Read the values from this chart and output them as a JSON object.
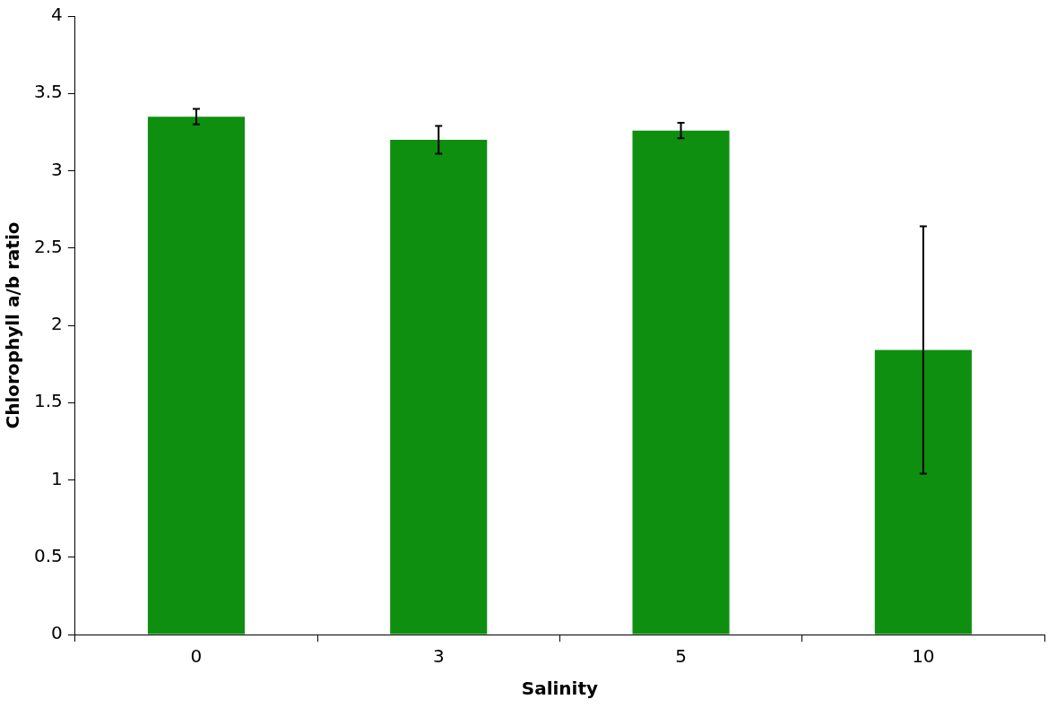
{
  "chart_data": {
    "type": "bar",
    "xlabel": "Salinity",
    "ylabel": "Chlorophyll a/b ratio",
    "categories": [
      "0",
      "3",
      "5",
      "10"
    ],
    "values": [
      3.35,
      3.2,
      3.26,
      1.84
    ],
    "errors": [
      0.05,
      0.09,
      0.05,
      0.8
    ],
    "color": "#0e8f10",
    "ylim": [
      0,
      4
    ],
    "yticks": [
      0,
      0.5,
      1,
      1.5,
      2,
      2.5,
      3,
      3.5,
      4
    ],
    "grid": false,
    "legend": false
  }
}
